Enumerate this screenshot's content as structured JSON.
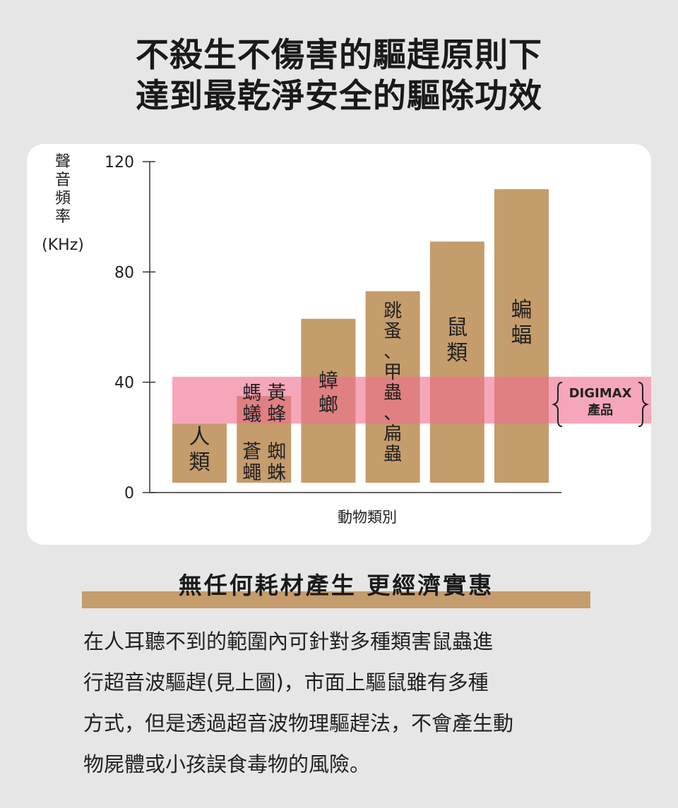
{
  "headline": {
    "line1": "不殺生不傷害的驅趕原則下",
    "line2": "達到最乾淨安全的驅除功效"
  },
  "colors": {
    "bar": "#c59c6c",
    "band": "#f07090",
    "page_bg": "#e6e6e6",
    "card_bg": "#ffffff"
  },
  "chart_data": {
    "type": "bar",
    "ylabel": "聲音頻率",
    "yunit": "(KHz)",
    "xlabel": "動物類別",
    "ylim": [
      0,
      120
    ],
    "yticks": [
      "0",
      "40",
      "80",
      "120"
    ],
    "grid": false,
    "categories": [
      "人類",
      "螞蟻 黃蜂 蒼蠅 蜘蛛",
      "蟑螂",
      "跳蚤、甲蟲、扁蟲",
      "鼠類",
      "蝙蝠"
    ],
    "values": [
      25,
      35,
      63,
      73,
      91,
      110
    ],
    "bar_labels": [
      [
        "人",
        "類"
      ],
      [
        "螞",
        "蟻"
      ],
      [
        "蟑",
        "螂"
      ],
      [
        "跳",
        "蚤",
        "、",
        "甲",
        "蟲",
        "、",
        "扁",
        "蟲"
      ],
      [
        "鼠",
        "類"
      ],
      [
        "蝙",
        "蝠"
      ]
    ],
    "bar_label_extra": [
      [
        [
          "黃",
          "蜂"
        ]
      ],
      [],
      [],
      [],
      [],
      []
    ],
    "second_labels": [
      [
        "蒼",
        "蠅"
      ],
      [
        "蜘",
        "蛛"
      ]
    ],
    "band": {
      "from": 25,
      "to": 42,
      "label_line1": "DIGIMAX",
      "label_line2": "產品"
    }
  },
  "subhead": "無任何耗材產生 更經濟實惠",
  "body": {
    "line1": "在人耳聽不到的範圍內可針對多種類害鼠蟲進",
    "line2": "行超音波驅趕(見上圖)，市面上驅鼠雖有多種",
    "line3": "方式，但是透過超音波物理驅趕法，不會產生動",
    "line4": "物屍體或小孩誤食毒物的風險。"
  }
}
